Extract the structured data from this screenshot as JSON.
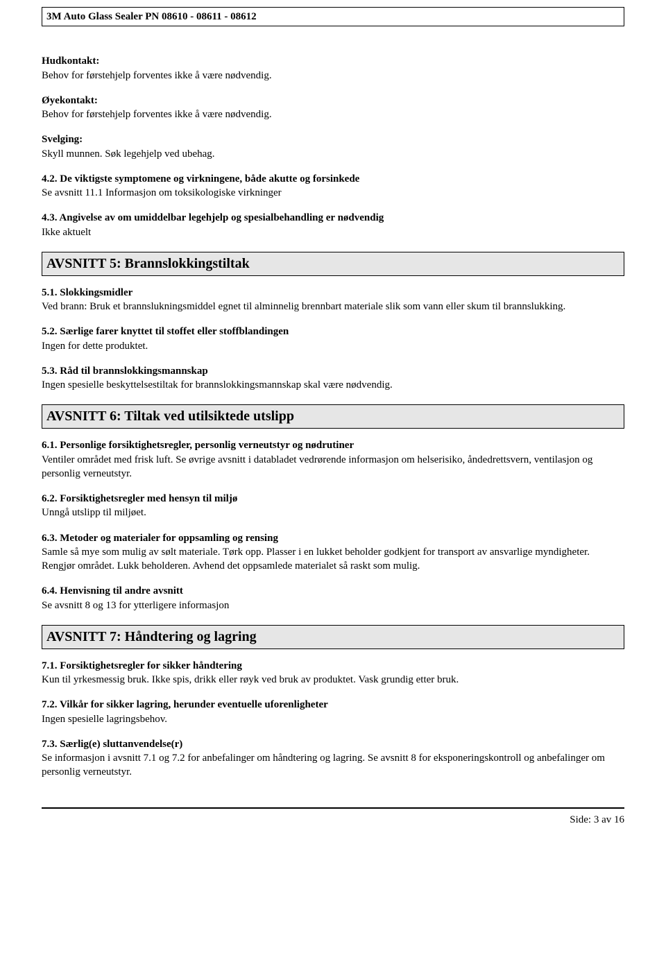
{
  "header": {
    "title": "3M Auto Glass Sealer PN 08610 - 08611 - 08612"
  },
  "s4": {
    "hud_h": "Hudkontakt:",
    "hud_t": "Behov for førstehjelp forventes ikke å være nødvendig.",
    "oye_h": "Øyekontakt:",
    "oye_t": "Behov for førstehjelp forventes ikke å være nødvendig.",
    "svelg_h": "Svelging:",
    "svelg_t": "Skyll munnen. Søk legehjelp ved ubehag.",
    "s42_h": "4.2. De viktigste symptomene og virkningene, både akutte og forsinkede",
    "s42_t": "Se avsnitt 11.1 Informasjon om toksikologiske virkninger",
    "s43_h": "4.3. Angivelse av om umiddelbar legehjelp og spesialbehandling er nødvendig",
    "s43_t": "Ikke aktuelt"
  },
  "s5": {
    "title": "AVSNITT 5: Brannslokkingstiltak",
    "s51_h": "5.1. Slokkingsmidler",
    "s51_t": "Ved brann: Bruk et brannslukningsmiddel egnet til alminnelig brennbart materiale slik som vann eller skum til brannslukking.",
    "s52_h": "5.2. Særlige farer knyttet til stoffet eller stoffblandingen",
    "s52_t": "Ingen for dette produktet.",
    "s53_h": "5.3. Råd til brannslokkingsmannskap",
    "s53_t": "Ingen spesielle beskyttelsestiltak for brannslokkingsmannskap skal være nødvendig."
  },
  "s6": {
    "title": "AVSNITT 6: Tiltak ved utilsiktede utslipp",
    "s61_h": "6.1. Personlige forsiktighetsregler, personlig verneutstyr og nødrutiner",
    "s61_t": "Ventiler området med frisk luft.  Se øvrige avsnitt i databladet vedrørende informasjon om helserisiko, åndedrettsvern, ventilasjon og personlig verneutstyr.",
    "s62_h": "6.2. Forsiktighetsregler med hensyn til miljø",
    "s62_t": "Unngå utslipp til miljøet.",
    "s63_h": "6.3. Metoder og materialer for oppsamling og rensing",
    "s63_t": "Samle så mye som mulig av sølt materiale.  Tørk opp.  Plasser i en lukket beholder godkjent for transport av ansvarlige myndigheter.  Rengjør området.  Lukk beholderen.  Avhend det oppsamlede materialet så raskt som mulig.",
    "s64_h": "6.4. Henvisning til andre avsnitt",
    "s64_t": "Se avsnitt 8 og 13 for ytterligere informasjon"
  },
  "s7": {
    "title": "AVSNITT 7: Håndtering og lagring",
    "s71_h": "7.1. Forsiktighetsregler for sikker håndtering",
    "s71_t": "Kun til yrkesmessig bruk.  Ikke spis, drikk eller røyk ved bruk av produktet.  Vask grundig etter bruk.",
    "s72_h": "7.2. Vilkår for sikker lagring, herunder eventuelle uforenligheter",
    "s72_t": "Ingen spesielle lagringsbehov.",
    "s73_h": "7.3. Særlig(e) sluttanvendelse(r)",
    "s73_t": "Se informasjon i avsnitt 7.1 og 7.2 for anbefalinger om håndtering og lagring. Se avsnitt 8 for eksponeringskontroll og anbefalinger om personlig verneutstyr."
  },
  "footer": {
    "text": "Side: 3 av  16"
  }
}
